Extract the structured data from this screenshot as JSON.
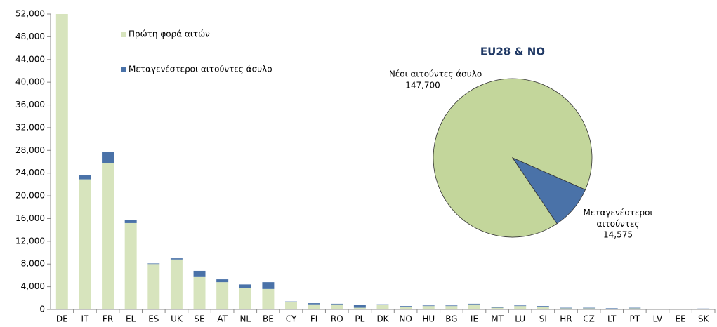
{
  "chart_data": [
    {
      "type": "stacked_bar",
      "categories": [
        "DE",
        "IT",
        "FR",
        "EL",
        "ES",
        "UK",
        "SE",
        "AT",
        "NL",
        "BE",
        "CY",
        "FI",
        "RO",
        "PL",
        "DK",
        "NO",
        "HU",
        "BG",
        "IE",
        "MT",
        "LU",
        "SI",
        "HR",
        "CZ",
        "LT",
        "PT",
        "LV",
        "EE",
        "SK"
      ],
      "series": [
        {
          "name": "Πρώτη φορά αιτών",
          "color": "#d7e4bd",
          "values": [
            52000,
            22900,
            25700,
            15200,
            8000,
            8800,
            5700,
            4800,
            3800,
            3600,
            1300,
            900,
            900,
            300,
            800,
            500,
            600,
            600,
            900,
            300,
            600,
            500,
            200,
            200,
            100,
            200,
            50,
            50,
            50
          ]
        },
        {
          "name": "Μεταγενέστεροι αιτούντες άσυλο",
          "color": "#4a72a8",
          "values": [
            0,
            700,
            2000,
            500,
            100,
            200,
            1100,
            500,
            600,
            1200,
            100,
            200,
            100,
            500,
            100,
            100,
            100,
            100,
            100,
            100,
            100,
            100,
            100,
            100,
            100,
            100,
            50,
            0,
            100
          ]
        }
      ],
      "ylim": [
        0,
        52000
      ],
      "yticks": [
        0,
        {
          "value": 4000,
          "label": "4,000"
        },
        {
          "value": 8000,
          "label": "8,000"
        },
        {
          "value": 12000,
          "label": "12,000"
        },
        {
          "value": 16000,
          "label": "16,000"
        },
        {
          "value": 20000,
          "label": "20,000"
        },
        {
          "value": 24000,
          "label": "24,000"
        },
        {
          "value": 28000,
          "label": "28,000"
        },
        {
          "value": 32000,
          "label": "32,000"
        },
        {
          "value": 36000,
          "label": "36,000"
        },
        {
          "value": 40000,
          "label": "40,000"
        },
        {
          "value": 44000,
          "label": "44,000"
        },
        {
          "value": 48000,
          "label": "48,000"
        },
        {
          "value": 52000,
          "label": "52,000"
        }
      ]
    },
    {
      "type": "pie",
      "title": "EU28 & NO",
      "categories": [
        "Νέοι αιτούντες άσυλο",
        "Μεταγενέστεροι αιτούντες"
      ],
      "values": [
        147700,
        14575
      ],
      "value_labels": [
        "147,700",
        "14,575"
      ],
      "colors": [
        "#c3d69b",
        "#4a72a8"
      ]
    }
  ]
}
